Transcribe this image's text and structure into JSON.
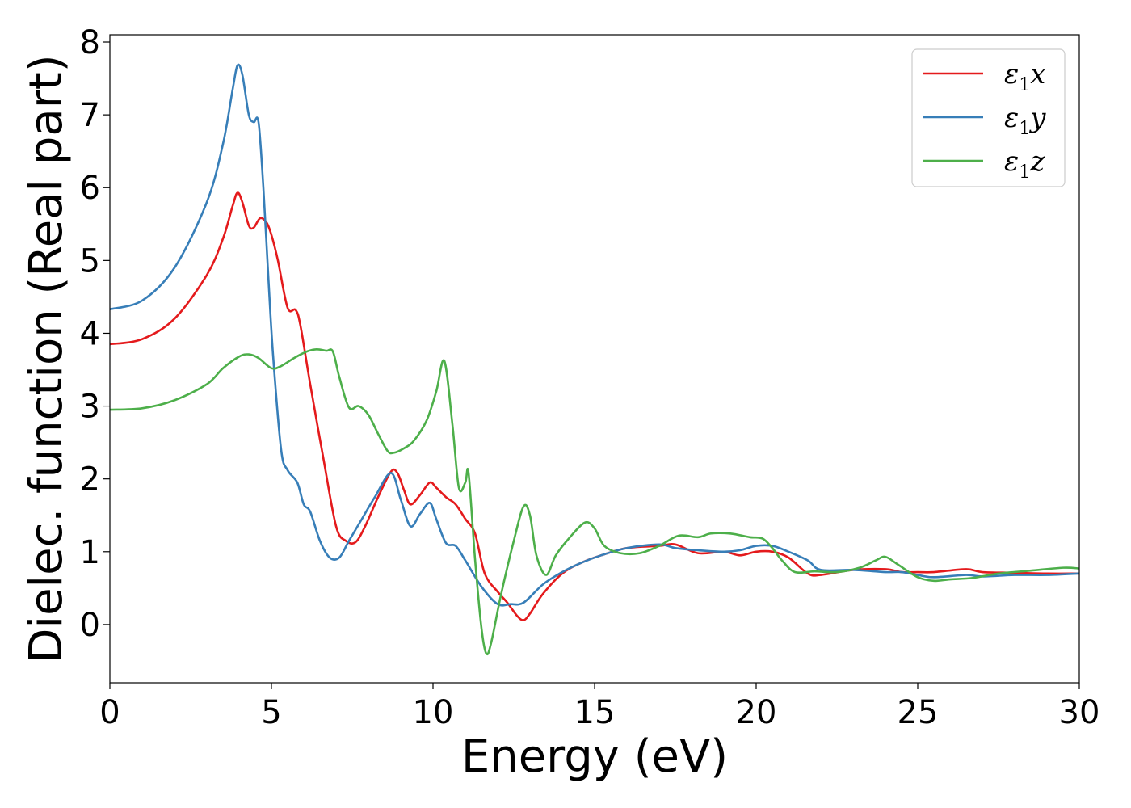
{
  "chart_data": {
    "type": "line",
    "title": "",
    "xlabel": "Energy (eV)",
    "ylabel": "Dielec. function (Real part)",
    "xlim": [
      0,
      30
    ],
    "ylim": [
      -0.8,
      8.1
    ],
    "xticks": [
      0,
      5,
      10,
      15,
      20,
      25,
      30
    ],
    "yticks": [
      0,
      1,
      2,
      3,
      4,
      5,
      6,
      7,
      8
    ],
    "grid": false,
    "legend": "top-right",
    "series": [
      {
        "name": "ε1x",
        "label_base": "ε",
        "label_sub": "1",
        "label_tail": "x",
        "color": "#e41a1c",
        "x": [
          0,
          1,
          2,
          3,
          3.5,
          3.8,
          3.95,
          4.1,
          4.3,
          4.45,
          4.65,
          4.85,
          5.0,
          5.2,
          5.5,
          5.75,
          5.9,
          6.2,
          6.6,
          7.0,
          7.3,
          7.6,
          7.9,
          8.3,
          8.7,
          8.9,
          9.1,
          9.3,
          9.6,
          9.9,
          10.1,
          10.4,
          10.7,
          11.0,
          11.3,
          11.6,
          12.0,
          12.3,
          12.6,
          12.8,
          13.0,
          13.4,
          14.0,
          14.6,
          15.2,
          16,
          17,
          17.5,
          18.2,
          19,
          19.5,
          20,
          20.5,
          21.0,
          21.6,
          22,
          23,
          24,
          24.5,
          25,
          25.5,
          26.5,
          27,
          28,
          29,
          30
        ],
        "y": [
          3.85,
          3.92,
          4.2,
          4.8,
          5.3,
          5.75,
          5.93,
          5.8,
          5.48,
          5.45,
          5.58,
          5.52,
          5.35,
          5.0,
          4.35,
          4.32,
          4.1,
          3.3,
          2.3,
          1.35,
          1.15,
          1.13,
          1.35,
          1.75,
          2.1,
          2.08,
          1.85,
          1.65,
          1.78,
          1.95,
          1.88,
          1.75,
          1.65,
          1.45,
          1.25,
          0.7,
          0.45,
          0.3,
          0.12,
          0.06,
          0.15,
          0.42,
          0.7,
          0.85,
          0.95,
          1.05,
          1.08,
          1.1,
          0.98,
          1.0,
          0.95,
          1.0,
          1.0,
          0.92,
          0.7,
          0.68,
          0.75,
          0.76,
          0.72,
          0.72,
          0.72,
          0.76,
          0.72,
          0.71,
          0.7,
          0.7
        ]
      },
      {
        "name": "ε1y",
        "label_base": "ε",
        "label_sub": "1",
        "label_tail": "y",
        "color": "#377eb8",
        "x": [
          0,
          1,
          2,
          3,
          3.5,
          3.8,
          3.95,
          4.1,
          4.3,
          4.45,
          4.6,
          4.75,
          4.9,
          5.05,
          5.3,
          5.5,
          5.8,
          6.0,
          6.2,
          6.5,
          6.8,
          7.1,
          7.4,
          7.8,
          8.2,
          8.7,
          9.0,
          9.3,
          9.6,
          9.9,
          10.1,
          10.4,
          10.7,
          11.0,
          11.5,
          12.0,
          12.4,
          12.8,
          13.4,
          14.0,
          14.6,
          15.2,
          16,
          17,
          17.5,
          18.2,
          19,
          19.5,
          20,
          20.5,
          21.0,
          21.6,
          22,
          23,
          24,
          24.5,
          25,
          25.5,
          26.5,
          27,
          28,
          29,
          30
        ],
        "y": [
          4.33,
          4.45,
          4.9,
          5.8,
          6.6,
          7.35,
          7.68,
          7.55,
          7.0,
          6.9,
          6.9,
          6.0,
          4.8,
          3.7,
          2.4,
          2.12,
          1.95,
          1.65,
          1.55,
          1.15,
          0.92,
          0.92,
          1.15,
          1.45,
          1.75,
          2.08,
          1.72,
          1.35,
          1.52,
          1.67,
          1.45,
          1.12,
          1.08,
          0.88,
          0.52,
          0.28,
          0.28,
          0.3,
          0.55,
          0.72,
          0.85,
          0.95,
          1.05,
          1.1,
          1.05,
          1.02,
          1.0,
          1.02,
          1.08,
          1.08,
          1.0,
          0.88,
          0.75,
          0.75,
          0.72,
          0.72,
          0.68,
          0.65,
          0.68,
          0.66,
          0.68,
          0.68,
          0.7
        ]
      },
      {
        "name": "ε1z",
        "label_base": "ε",
        "label_sub": "1",
        "label_tail": "z",
        "color": "#4daf4a",
        "x": [
          0,
          1,
          2,
          3,
          3.5,
          4.0,
          4.3,
          4.6,
          5.0,
          5.3,
          5.7,
          6.1,
          6.4,
          6.7,
          6.9,
          7.1,
          7.4,
          7.7,
          8.0,
          8.3,
          8.6,
          8.8,
          9.1,
          9.4,
          9.8,
          10.1,
          10.35,
          10.6,
          10.8,
          11.0,
          11.1,
          11.3,
          11.5,
          11.65,
          11.8,
          12.1,
          12.5,
          12.8,
          13.0,
          13.2,
          13.5,
          13.8,
          14.2,
          14.7,
          15.0,
          15.3,
          15.8,
          16.4,
          17.0,
          17.6,
          18.2,
          18.6,
          19.2,
          19.8,
          20.2,
          20.5,
          20.8,
          21.2,
          21.8,
          22.5,
          23.2,
          23.7,
          24.0,
          24.4,
          25.0,
          25.5,
          26.0,
          26.7,
          27.5,
          28.5,
          29.5,
          30
        ],
        "y": [
          2.95,
          2.97,
          3.08,
          3.3,
          3.52,
          3.68,
          3.71,
          3.66,
          3.52,
          3.55,
          3.66,
          3.75,
          3.78,
          3.76,
          3.75,
          3.4,
          2.98,
          3.0,
          2.88,
          2.62,
          2.38,
          2.36,
          2.42,
          2.52,
          2.8,
          3.2,
          3.62,
          2.75,
          1.88,
          1.95,
          2.08,
          0.9,
          -0.05,
          -0.4,
          -0.25,
          0.4,
          1.15,
          1.62,
          1.5,
          0.95,
          0.68,
          0.95,
          1.18,
          1.4,
          1.32,
          1.08,
          0.98,
          0.98,
          1.08,
          1.22,
          1.2,
          1.25,
          1.25,
          1.2,
          1.18,
          1.05,
          0.88,
          0.72,
          0.73,
          0.72,
          0.78,
          0.88,
          0.93,
          0.82,
          0.65,
          0.6,
          0.62,
          0.64,
          0.7,
          0.74,
          0.78,
          0.77
        ]
      }
    ]
  }
}
